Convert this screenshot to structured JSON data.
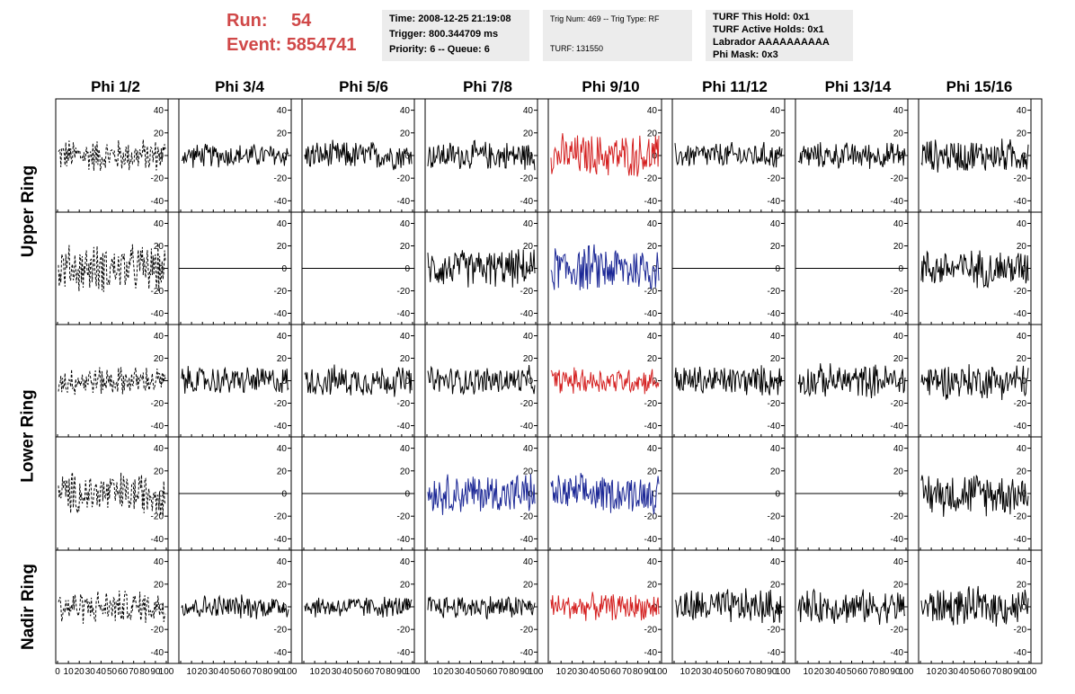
{
  "header": {
    "run_label": "Run:",
    "run_value": "54",
    "event_label": "Event:",
    "event_value": "5854741"
  },
  "info_box_1": {
    "time": "Time: 2008-12-25 21:19:08",
    "trigger": "Trigger: 800.344709 ms",
    "priority": "Priority: 6 -- Queue: 6"
  },
  "info_box_2": {
    "trig": "Trig Num: 469 -- Trig Type: RF",
    "turf": "TURF: 131550"
  },
  "info_box_3": {
    "this_hold": "TURF This Hold: 0x1",
    "active_holds": "TURF Active Holds: 0x1",
    "labrador": "Labrador AAAAAAAAAA",
    "phi_mask": "Phi Mask: 0x3"
  },
  "colors": {
    "trace": "#000000",
    "highlight_red": "#d42020",
    "highlight_blue": "#1c2896",
    "run_text": "#d04848",
    "info_bg": "#ececec"
  },
  "chart_data": {
    "type": "line",
    "columns": [
      "Phi 1/2",
      "Phi 3/4",
      "Phi 5/6",
      "Phi 7/8",
      "Phi 9/10",
      "Phi 11/12",
      "Phi 13/14",
      "Phi 15/16"
    ],
    "rows": [
      "Upper Ring",
      "Lower Ring",
      "Nadir Ring"
    ],
    "subrows": 5,
    "ylim": [
      -50,
      50
    ],
    "xlim": [
      0,
      100
    ],
    "y_ticks": [
      -40,
      -20,
      0,
      20,
      40
    ],
    "x_ticks": [
      0,
      10,
      20,
      30,
      40,
      50,
      60,
      70,
      80,
      90,
      100
    ],
    "x_tick_labels_first": [
      "0",
      "10",
      "20",
      "30",
      "40",
      "50",
      "60",
      "70",
      "80",
      "90",
      "100"
    ],
    "x_tick_labels_other": [
      "10",
      "20",
      "30",
      "40",
      "50",
      "60",
      "70",
      "80",
      "90",
      "100"
    ],
    "panels": [
      {
        "row": 0,
        "col": 0,
        "style": "dashed",
        "color": "black",
        "amplitude": 14,
        "spread": "wide"
      },
      {
        "row": 0,
        "col": 1,
        "style": "solid",
        "color": "black",
        "amplitude": 10
      },
      {
        "row": 0,
        "col": 2,
        "style": "solid",
        "color": "black",
        "amplitude": 12
      },
      {
        "row": 0,
        "col": 3,
        "style": "solid",
        "color": "black",
        "amplitude": 12
      },
      {
        "row": 0,
        "col": 4,
        "style": "solid",
        "color": "red",
        "amplitude": 18
      },
      {
        "row": 0,
        "col": 5,
        "style": "solid",
        "color": "black",
        "amplitude": 11
      },
      {
        "row": 0,
        "col": 6,
        "style": "solid",
        "color": "black",
        "amplitude": 11
      },
      {
        "row": 0,
        "col": 7,
        "style": "solid",
        "color": "black",
        "amplitude": 14
      },
      {
        "row": 1,
        "col": 0,
        "style": "dashed",
        "color": "black",
        "amplitude": 20
      },
      {
        "row": 1,
        "col": 1,
        "style": "flat",
        "color": "black",
        "amplitude": 0
      },
      {
        "row": 1,
        "col": 2,
        "style": "flat",
        "color": "black",
        "amplitude": 0
      },
      {
        "row": 1,
        "col": 3,
        "style": "solid",
        "color": "black",
        "amplitude": 16
      },
      {
        "row": 1,
        "col": 4,
        "style": "solid",
        "color": "blue",
        "amplitude": 20
      },
      {
        "row": 1,
        "col": 5,
        "style": "flat",
        "color": "black",
        "amplitude": 0
      },
      {
        "row": 1,
        "col": 6,
        "style": "flat",
        "color": "black",
        "amplitude": 0
      },
      {
        "row": 1,
        "col": 7,
        "style": "solid",
        "color": "black",
        "amplitude": 16
      },
      {
        "row": 2,
        "col": 0,
        "style": "dashed",
        "color": "black",
        "amplitude": 12
      },
      {
        "row": 2,
        "col": 1,
        "style": "solid",
        "color": "black",
        "amplitude": 12
      },
      {
        "row": 2,
        "col": 2,
        "style": "solid",
        "color": "black",
        "amplitude": 13
      },
      {
        "row": 2,
        "col": 3,
        "style": "solid",
        "color": "black",
        "amplitude": 12
      },
      {
        "row": 2,
        "col": 4,
        "style": "solid",
        "color": "red",
        "amplitude": 11
      },
      {
        "row": 2,
        "col": 5,
        "style": "solid",
        "color": "black",
        "amplitude": 13
      },
      {
        "row": 2,
        "col": 6,
        "style": "solid",
        "color": "black",
        "amplitude": 14
      },
      {
        "row": 2,
        "col": 7,
        "style": "solid",
        "color": "black",
        "amplitude": 15
      },
      {
        "row": 3,
        "col": 0,
        "style": "dashed",
        "color": "black",
        "amplitude": 18
      },
      {
        "row": 3,
        "col": 1,
        "style": "flat",
        "color": "black",
        "amplitude": 0
      },
      {
        "row": 3,
        "col": 2,
        "style": "flat",
        "color": "black",
        "amplitude": 0
      },
      {
        "row": 3,
        "col": 3,
        "style": "solid",
        "color": "blue",
        "amplitude": 17
      },
      {
        "row": 3,
        "col": 4,
        "style": "solid",
        "color": "blue",
        "amplitude": 16
      },
      {
        "row": 3,
        "col": 5,
        "style": "flat",
        "color": "black",
        "amplitude": 0
      },
      {
        "row": 3,
        "col": 6,
        "style": "flat",
        "color": "black",
        "amplitude": 0
      },
      {
        "row": 3,
        "col": 7,
        "style": "solid",
        "color": "black",
        "amplitude": 18
      },
      {
        "row": 4,
        "col": 0,
        "style": "dashed",
        "color": "black",
        "amplitude": 14
      },
      {
        "row": 4,
        "col": 1,
        "style": "solid",
        "color": "black",
        "amplitude": 10
      },
      {
        "row": 4,
        "col": 2,
        "style": "solid",
        "color": "black",
        "amplitude": 9
      },
      {
        "row": 4,
        "col": 3,
        "style": "solid",
        "color": "black",
        "amplitude": 10
      },
      {
        "row": 4,
        "col": 4,
        "style": "solid",
        "color": "red",
        "amplitude": 11
      },
      {
        "row": 4,
        "col": 5,
        "style": "solid",
        "color": "black",
        "amplitude": 15
      },
      {
        "row": 4,
        "col": 6,
        "style": "solid",
        "color": "black",
        "amplitude": 14
      },
      {
        "row": 4,
        "col": 7,
        "style": "solid",
        "color": "black",
        "amplitude": 16
      }
    ]
  }
}
